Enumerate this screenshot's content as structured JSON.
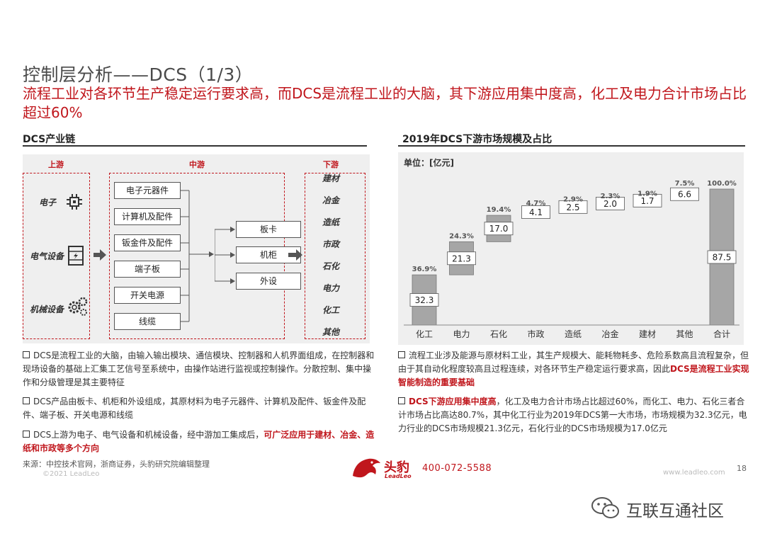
{
  "header": {
    "title": "控制层分析——DCS（1/3）",
    "subtitle": "流程工业对各环节生产稳定运行要求高，而DCS是流程工业的大脑，其下游应用集中度高，化工及电力合计市场占比超过60%"
  },
  "left": {
    "section_title": "DCS产业链",
    "upstream": {
      "label": "上游",
      "items": [
        {
          "label": "电子",
          "icon": "chip-icon"
        },
        {
          "label": "电气设备",
          "icon": "electrical-cabinet-icon"
        },
        {
          "label": "机械设备",
          "icon": "gears-icon"
        }
      ]
    },
    "midstream": {
      "label": "中游",
      "materials": [
        "电子元器件",
        "计算机及配件",
        "钣金件及配件",
        "端子板",
        "开关电源",
        "线缆"
      ],
      "products": [
        "板卡",
        "机柜",
        "外设"
      ]
    },
    "downstream": {
      "label": "下游",
      "items": [
        "建材",
        "冶金",
        "造纸",
        "市政",
        "石化",
        "电力",
        "化工",
        "其他"
      ]
    },
    "bullets": [
      {
        "text": "DCS是流程工业的大脑，由输入输出模块、通信模块、控制器和人机界面组成，在控制器和现场设备的基础上汇集工艺信号至系统中，由操作站进行监视或控制操作。分散控制、集中操作和分级管理是其主要特征"
      },
      {
        "text": "DCS产品由板卡、机柜和外设组成，其原材料为电子元器件、计算机及配件、钣金件及配件、端子板、开关电源和线缆"
      },
      {
        "text_plain": "DCS上游为电子、电气设备和机械设备，经中游加工集成后，",
        "text_red": "可广泛应用于建材、冶金、造纸和市政等多个方向"
      }
    ]
  },
  "right": {
    "section_title": "2019年DCS下游市场规模及占比",
    "unit_label": "单位：[亿元]",
    "bullets": [
      {
        "text_plain": "流程工业涉及能源与原材料工业，其生产规模大、能耗物耗多、危险系数高且流程复杂，但由于其自动化程度较高且过程连续，对各环节生产稳定运行要求高，因此",
        "text_red": "DCS是流程工业实现智能制造的重要基础"
      },
      {
        "text_red": "DCS下游应用集中度高",
        "text_plain": "，化工及电力合计市场占比超过60%，而化工、电力、石化三者合计市场占比高达80.7%，其中化工行业为2019年DCS第一大市场，市场规模为32.3亿元，电力行业的DCS市场规模21.3亿元，石化行业的DCS市场规模为17.0亿元"
      }
    ]
  },
  "chart_data": {
    "type": "bar",
    "subtype": "waterfall",
    "categories": [
      "化工",
      "电力",
      "石化",
      "市政",
      "造纸",
      "冶金",
      "建材",
      "其他",
      "合计"
    ],
    "values": [
      32.3,
      21.3,
      17.0,
      4.1,
      2.5,
      2.0,
      1.7,
      6.6,
      87.5
    ],
    "percent_labels": [
      "36.9%",
      "24.3%",
      "19.4%",
      "4.7%",
      "2.9%",
      "2.3%",
      "1.9%",
      "7.5%",
      "100.0%"
    ],
    "value_labels": [
      "32.3",
      "21.3",
      "17.0",
      "4.1",
      "2.5",
      "2.0",
      "1.7",
      "6.6",
      "87.5"
    ],
    "ylim": [
      0,
      87.5
    ],
    "grid": false,
    "bar_color": "#a6a6a6"
  },
  "footer": {
    "source": "来源：中控技术官网，浙商证券，头豹研究院编辑整理",
    "copyright": "©2021 LeadLeo",
    "logo_cn": "头豹",
    "logo_en": "LeadLeo",
    "phone": "400-072-5588",
    "website": "www.leadleo.com",
    "page": "18",
    "watermark": "互联互通社区"
  },
  "colors": {
    "accent": "#c0161c",
    "panel": "#efefef",
    "bar": "#a6a6a6"
  }
}
